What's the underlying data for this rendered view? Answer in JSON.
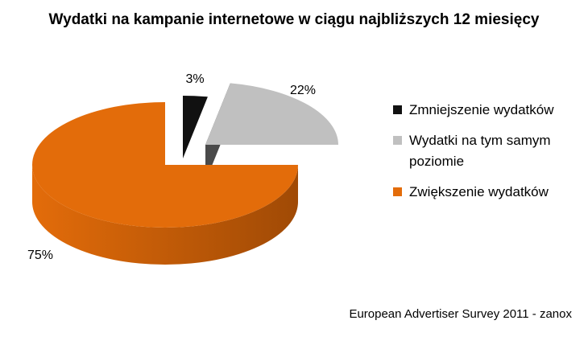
{
  "chart_data": {
    "type": "pie",
    "title": "Wydatki na kampanie internetowe w ciągu najbliższych 12 miesięcy",
    "unit": "%",
    "slices": [
      {
        "label": "Zmniejszenie wydatków",
        "value": 3,
        "value_label": "3%",
        "color": "#111111",
        "side_color": "#000000"
      },
      {
        "label": "Wydatki na tym samym poziomie",
        "value": 22,
        "value_label": "22%",
        "color": "#c0c0c0",
        "side_color": "#4a4a4a"
      },
      {
        "label": "Zwiększenie wydatków",
        "value": 75,
        "value_label": "75%",
        "color": "#e36c0a",
        "side_color": "#a04a05"
      }
    ],
    "exploded": true,
    "legend_position": "right"
  },
  "legend": {
    "items": [
      {
        "label": "Zmniejszenie wydatków",
        "color": "#111111"
      },
      {
        "label": "Wydatki na tym samym poziomie",
        "color": "#c0c0c0"
      },
      {
        "label": "Zwiększenie wydatków",
        "color": "#e36c0a"
      }
    ]
  },
  "source": "European Advertiser Survey 2011 - zanox"
}
